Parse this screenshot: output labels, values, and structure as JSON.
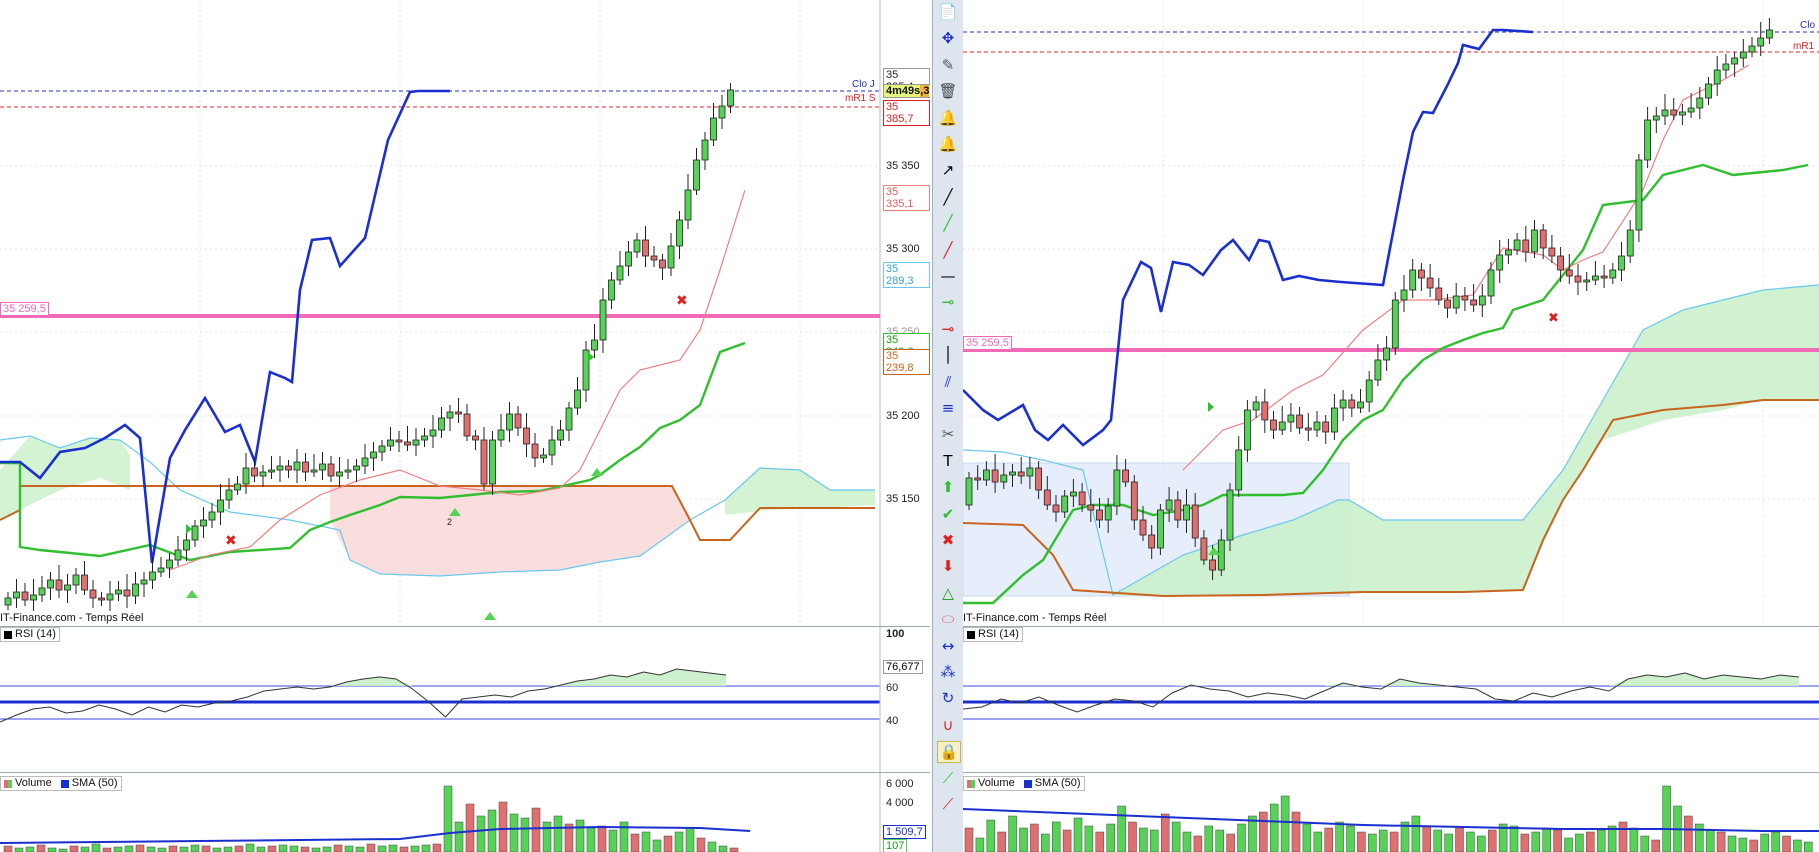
{
  "left_chart": {
    "source": "IT-Finance.com - Temps Réel",
    "y_axis_ticks": [
      "35 350",
      "35 300",
      "35 250",
      "35 200",
      "35 150"
    ],
    "price_tags": {
      "clo": "35 395,4",
      "countdown": "4m49s",
      "countdown_suffix": ",3",
      "mr1": "35 385,7",
      "red_level": "35 335,1",
      "cyan_level": "35 289,3",
      "green_level": "35 243,6",
      "orange_level": "35 239,8",
      "pink_level": "35 259,5"
    },
    "line_labels": {
      "clo": "Clo J",
      "mr1": "mR1 S"
    },
    "marker_label": "2",
    "rsi": {
      "legend": "RSI (14)",
      "top": "100",
      "value": "76,677",
      "levels": [
        "60",
        "40"
      ]
    },
    "volume": {
      "legend_volume": "Volume",
      "legend_sma": "SMA (50)",
      "ticks": [
        "6 000",
        "4 000"
      ],
      "sma_value": "1 509,7",
      "last_value": "107"
    }
  },
  "right_chart": {
    "source": "IT-Finance.com - Temps Réel",
    "line_labels": {
      "clo": "Clo",
      "mr1": "mR1"
    },
    "pink_level": "35 259,5",
    "rsi": {
      "legend": "RSI (14)"
    },
    "volume": {
      "legend_volume": "Volume",
      "legend_sma": "SMA (50)"
    }
  },
  "colors": {
    "bull": "#56d256",
    "bear": "#e07070",
    "tenkan": "#1a2fd0",
    "kijun": "#2fbf2f",
    "chikou_red": "#f08080",
    "cloud_green": "#c8f0c8",
    "cloud_red": "#fadada",
    "pink_line": "#f06ab8",
    "orange": "#c8641e",
    "cyan": "#6ac8f0",
    "clo_line": "#2030c0",
    "mr1_line": "#e02020"
  },
  "toolbar_icons": [
    "document-icon",
    "move-icon",
    "pin-icon",
    "trash-icon",
    "bell-add-icon",
    "bell-icon",
    "arrow-icon",
    "line-icon",
    "green-line-icon",
    "red-line-icon",
    "hline-icon",
    "green-hline-icon",
    "red-hline-icon",
    "vline-icon",
    "channel-icon",
    "fibo-icon",
    "tools-icon",
    "text-icon",
    "up-arrow-icon",
    "check-icon",
    "cross-icon",
    "down-arrow-icon",
    "triangle-icon",
    "ellipse-icon",
    "measure-icon",
    "nodes-icon",
    "cycle-icon",
    "magnet-icon",
    "lock-icon",
    "indicator-icon",
    "trend-icon"
  ]
}
